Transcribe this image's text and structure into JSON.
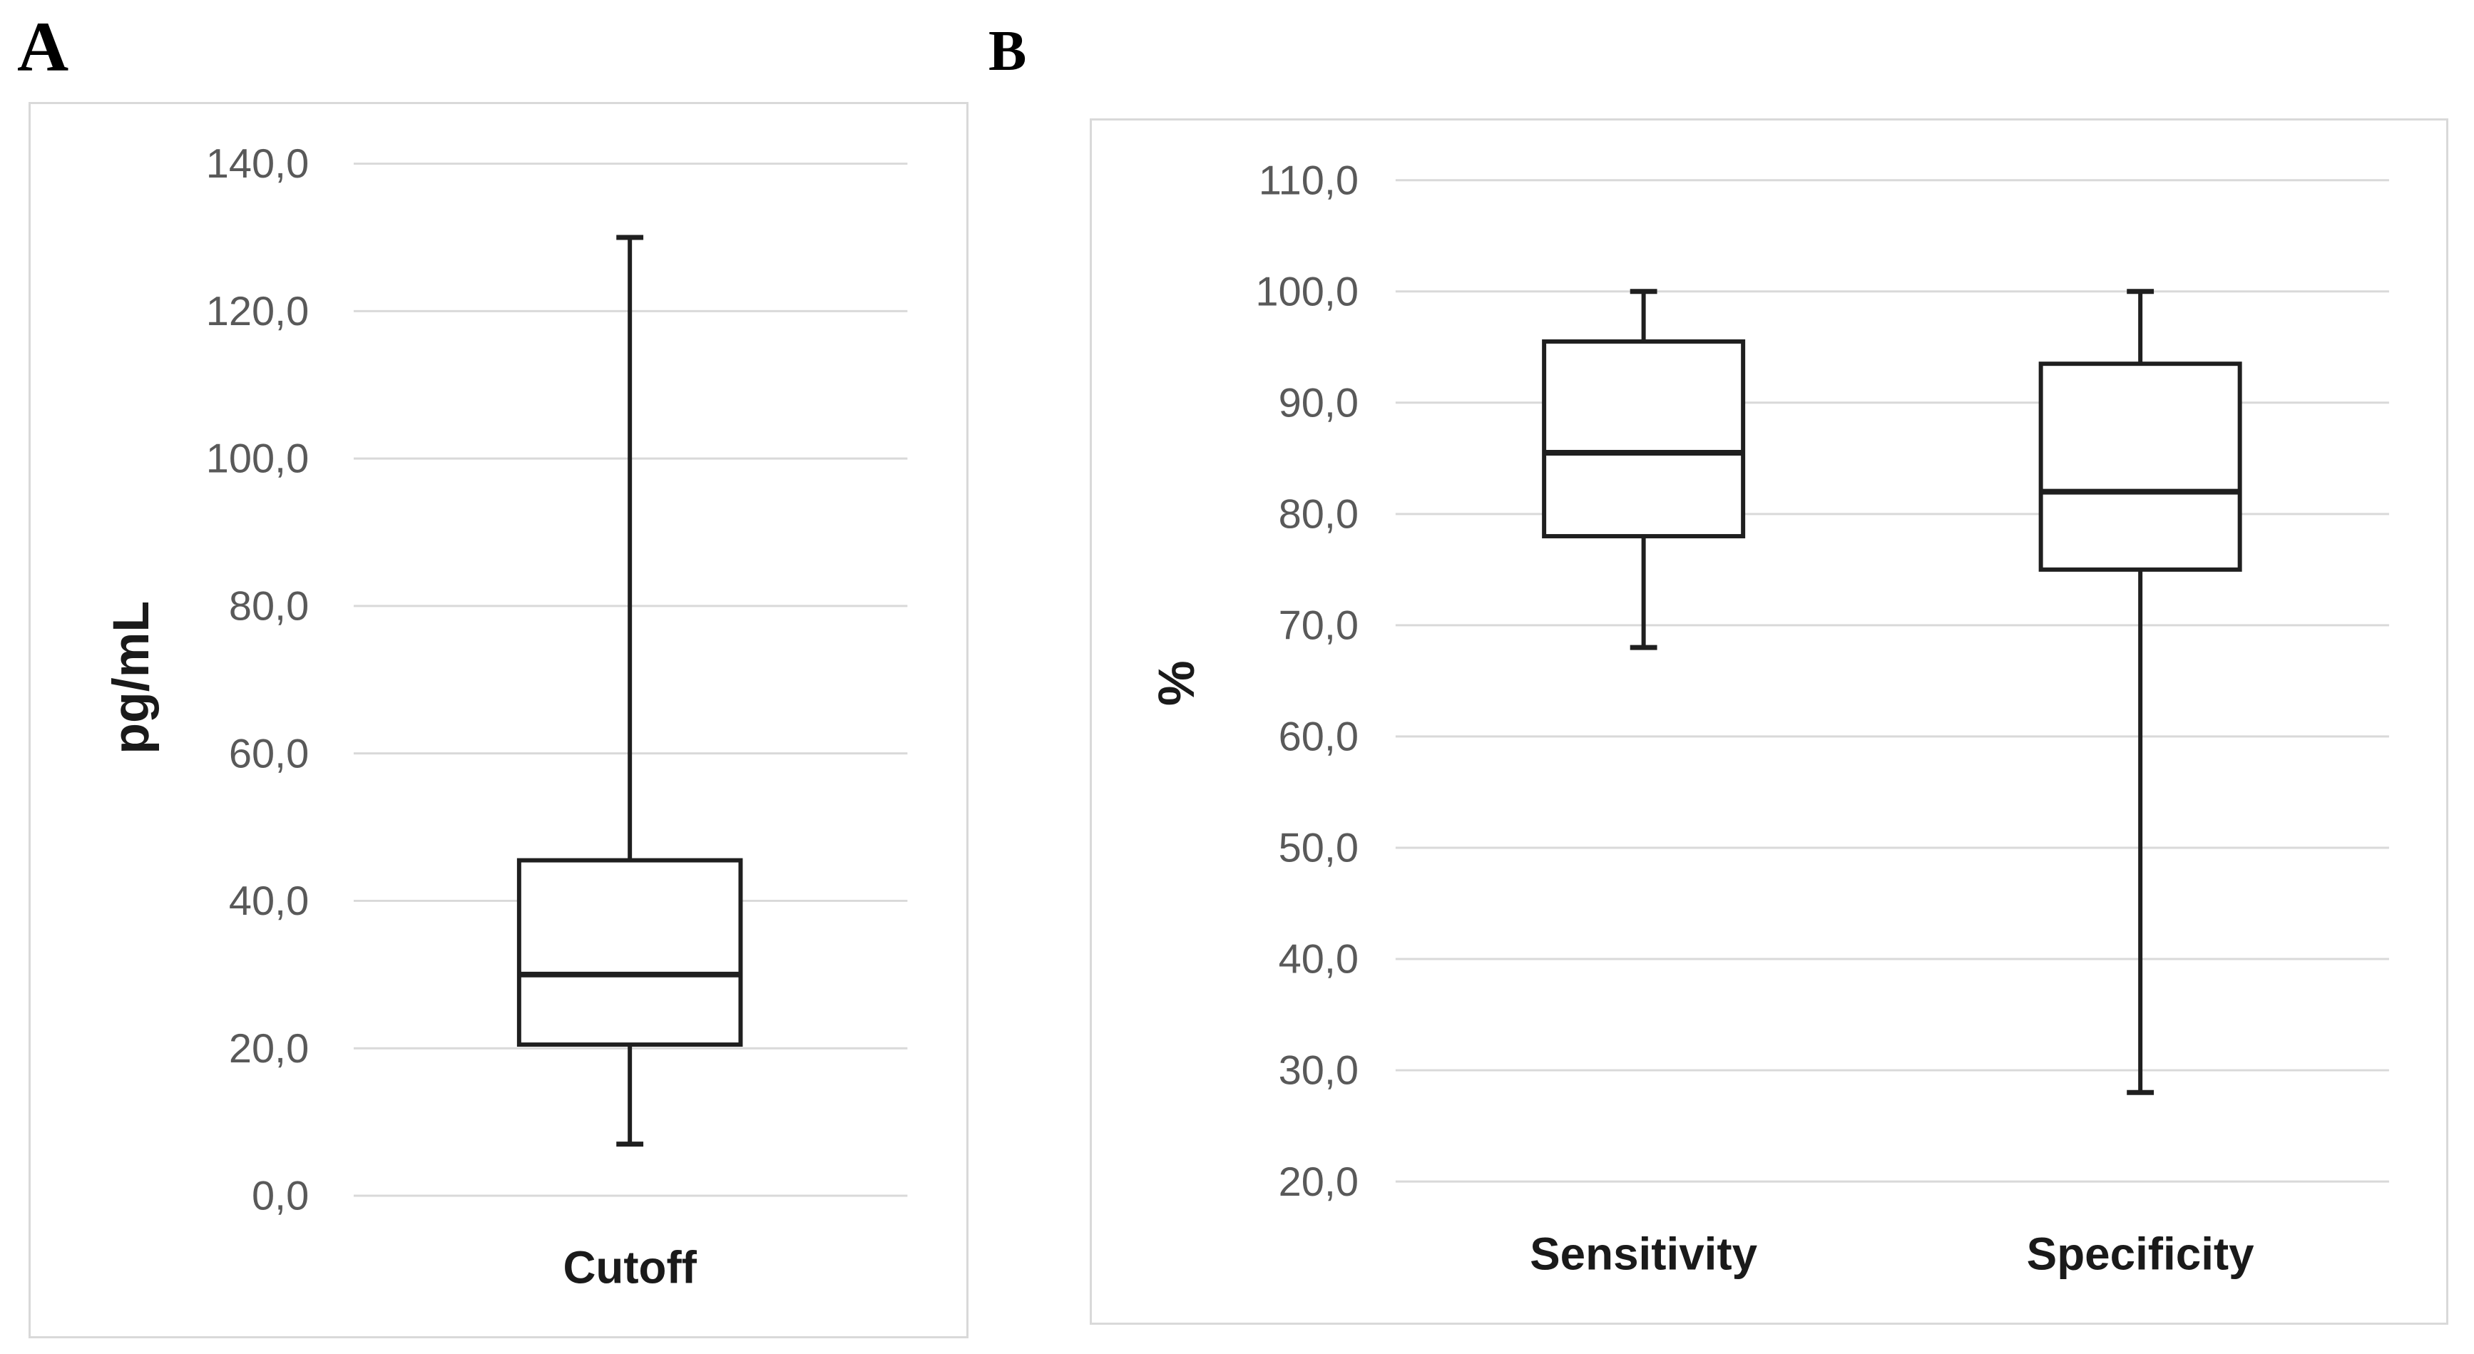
{
  "figure": {
    "panels": [
      {
        "letter": "A"
      },
      {
        "letter": "B"
      }
    ]
  },
  "style": {
    "background_color": "#ffffff",
    "panel_border_color": "#d9d9d9",
    "gridline_color": "#d9d9d9",
    "tick_text_color": "#595959",
    "label_text_color": "#1a1a1a",
    "box_stroke_color": "#1f1f1f",
    "box_fill_color": "#ffffff"
  },
  "chart_data": [
    {
      "id": "cutoff",
      "type": "boxplot",
      "panel_letter": "A",
      "title": "",
      "xlabel": "",
      "ylabel": "pg/mL",
      "ylim": [
        0,
        140
      ],
      "grid": true,
      "decimal_separator": ",",
      "yticks": [
        {
          "value": 140,
          "label": "140,0"
        },
        {
          "value": 120,
          "label": "120,0"
        },
        {
          "value": 100,
          "label": "100,0"
        },
        {
          "value": 80,
          "label": "80,0"
        },
        {
          "value": 60,
          "label": "60,0"
        },
        {
          "value": 40,
          "label": "40,0"
        },
        {
          "value": 20,
          "label": "20,0"
        },
        {
          "value": 0,
          "label": "0,0"
        }
      ],
      "categories": [
        "Cutoff"
      ],
      "series": [
        {
          "name": "Cutoff",
          "min": 7,
          "q1": 20.5,
          "median": 30,
          "q3": 45.5,
          "max": 130
        }
      ]
    },
    {
      "id": "performance",
      "type": "boxplot",
      "panel_letter": "B",
      "title": "",
      "xlabel": "",
      "ylabel": "%",
      "ylim": [
        20,
        110
      ],
      "grid": true,
      "decimal_separator": ",",
      "yticks": [
        {
          "value": 110,
          "label": "110,0"
        },
        {
          "value": 100,
          "label": "100,0"
        },
        {
          "value": 90,
          "label": "90,0"
        },
        {
          "value": 80,
          "label": "80,0"
        },
        {
          "value": 70,
          "label": "70,0"
        },
        {
          "value": 60,
          "label": "60,0"
        },
        {
          "value": 50,
          "label": "50,0"
        },
        {
          "value": 40,
          "label": "40,0"
        },
        {
          "value": 30,
          "label": "30,0"
        },
        {
          "value": 20,
          "label": "20,0"
        }
      ],
      "categories": [
        "Sensitivity",
        "Specificity"
      ],
      "series": [
        {
          "name": "Sensitivity",
          "min": 68,
          "q1": 78,
          "median": 85.5,
          "q3": 95.5,
          "max": 100
        },
        {
          "name": "Specificity",
          "min": 28,
          "q1": 75,
          "median": 82,
          "q3": 93.5,
          "max": 100
        }
      ]
    }
  ]
}
